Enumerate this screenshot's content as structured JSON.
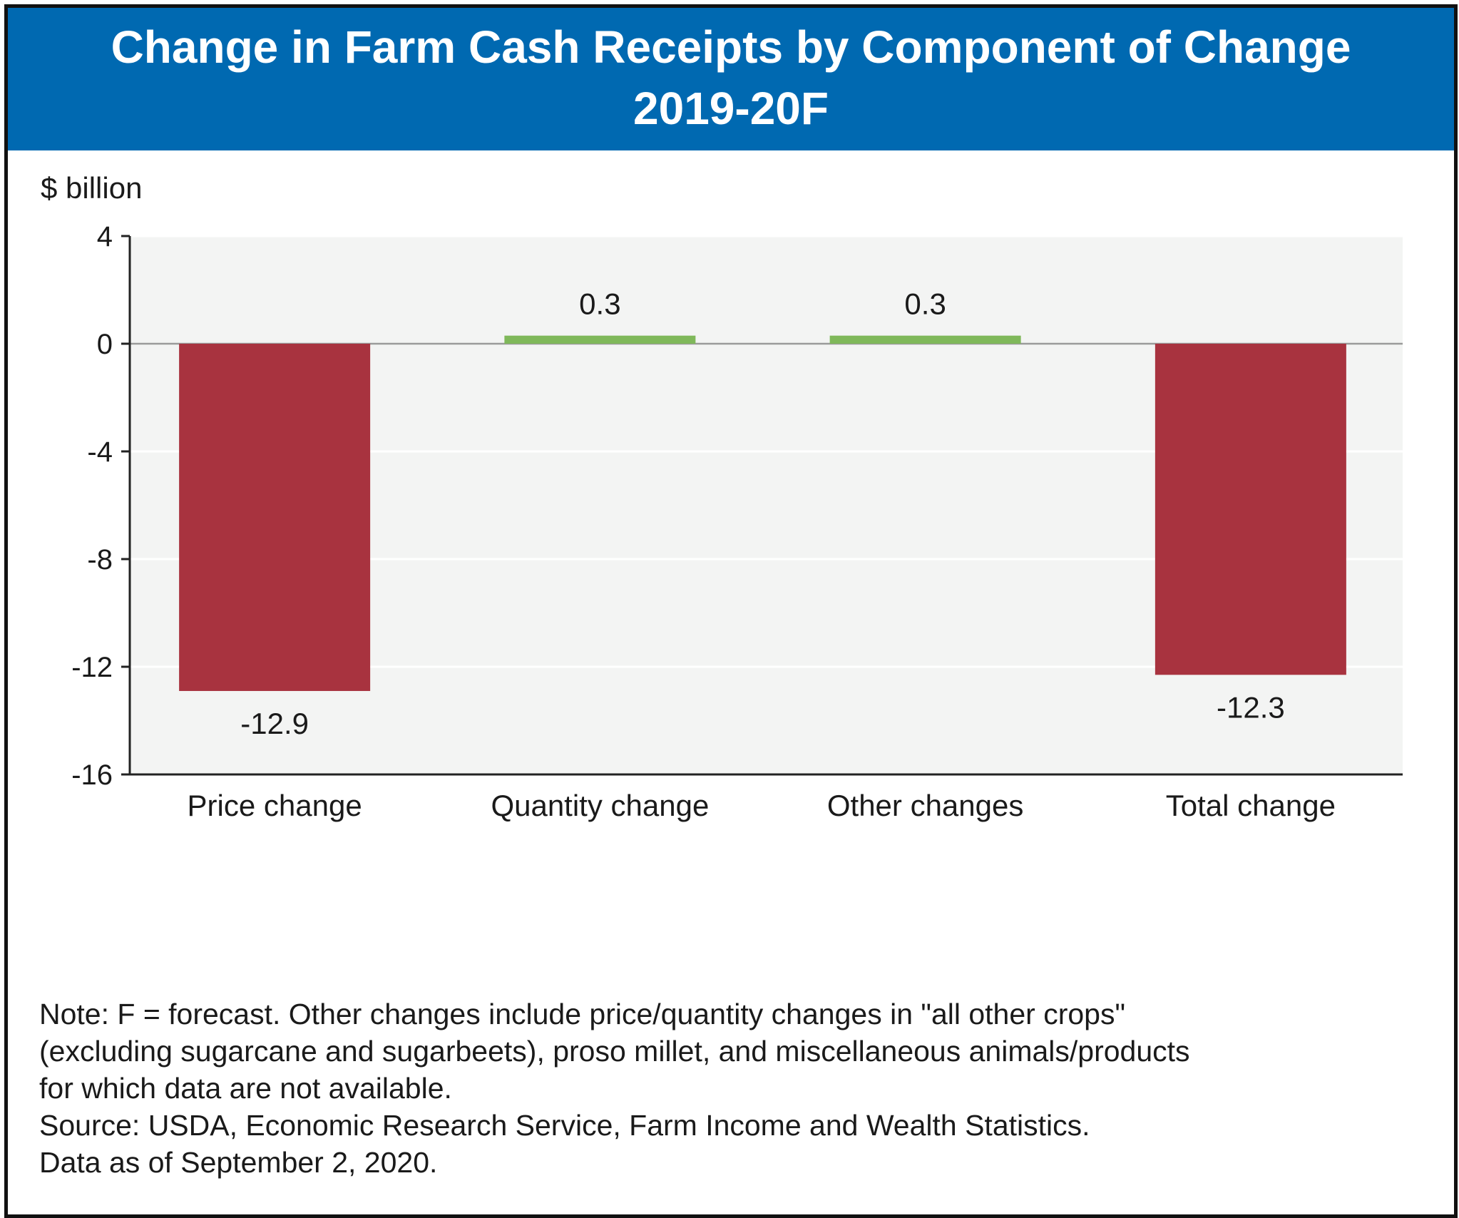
{
  "title": "Change in Farm Cash Receipts by Component of Change",
  "subtitle": "2019-20F",
  "colors": {
    "title_background": "#0069b1",
    "negative_bar": "#a8333f",
    "positive_bar": "#7fb85a",
    "plot_background": "#f3f4f3"
  },
  "chart_data": {
    "type": "bar",
    "ylabel": "$ billion",
    "xlabel": "",
    "categories": [
      "Price change",
      "Quantity change",
      "Other changes",
      "Total change"
    ],
    "values": [
      -12.9,
      0.3,
      0.3,
      -12.3
    ],
    "data_labels": [
      "-12.9",
      "0.3",
      "0.3",
      "-12.3"
    ],
    "ylim": [
      -16,
      4
    ],
    "yticks": [
      4,
      0,
      -4,
      -8,
      -12,
      -16
    ],
    "ytick_labels": [
      "4",
      "0",
      "-4",
      "-8",
      "-12",
      "-16"
    ],
    "grid": true,
    "legend": "none"
  },
  "notes": {
    "lines": [
      "Note: F = forecast. Other changes include price/quantity changes in \"all other crops\"",
      "(excluding sugarcane and sugarbeets), proso millet, and miscellaneous animals/products",
      "for which data are not available.",
      "Source: USDA, Economic Research Service, Farm Income and Wealth Statistics.",
      "Data as of September 2, 2020."
    ]
  }
}
